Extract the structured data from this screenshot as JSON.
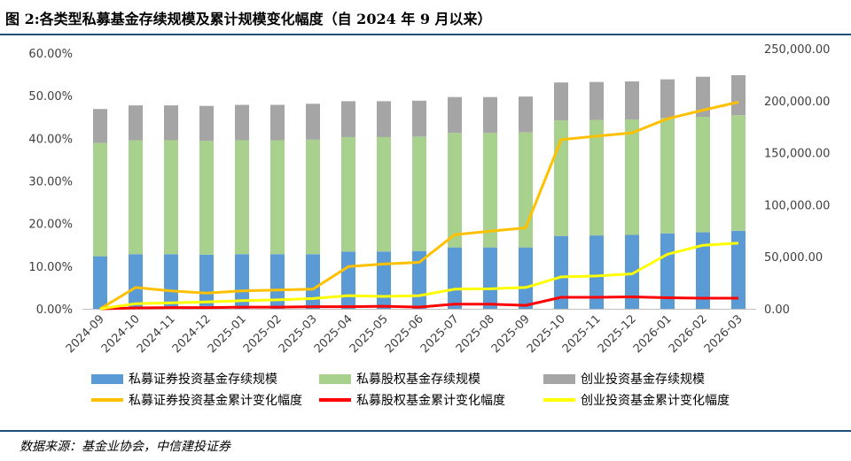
{
  "title": "图 2:各类型私募基金存续规模及累计规模变化幅度（自 2024 年 9 月以来）",
  "source": "数据来源：基金业协会，中信建投证券",
  "chart_data": {
    "type": "bar",
    "stacked": true,
    "categories": [
      "2024-09",
      "2024-10",
      "2024-11",
      "2024-12",
      "2025-01",
      "2025-02",
      "2025-03",
      "2025-04",
      "2025-05",
      "2025-06",
      "2025-07",
      "2025-08",
      "2025-09",
      "2025-10",
      "2025-11",
      "2025-12",
      "2026-01",
      "2026-02",
      "2026-03"
    ],
    "y_left": {
      "ticks": [
        "0.00%",
        "10.00%",
        "20.00%",
        "30.00%",
        "40.00%",
        "50.00%",
        "60.00%"
      ],
      "range": [
        0,
        0.6
      ]
    },
    "y_right": {
      "ticks": [
        "0.00",
        "50,000.00",
        "100,000.00",
        "150,000.00",
        "200,000.00",
        "250,000.00"
      ],
      "range": [
        0,
        250000
      ]
    },
    "bar_series": [
      {
        "name": "私募证券投资基金存续规模",
        "color": "#5b9bd5",
        "values": [
          50500,
          52500,
          52500,
          52000,
          52500,
          52500,
          52500,
          55000,
          55000,
          55500,
          59000,
          59000,
          59000,
          70000,
          70500,
          71000,
          72500,
          73500,
          75000
        ]
      },
      {
        "name": "私募股权基金存续规模",
        "color": "#a9d18e",
        "values": [
          109000,
          109500,
          109500,
          109500,
          109500,
          109500,
          110000,
          110000,
          110000,
          110000,
          110000,
          110000,
          110500,
          111000,
          111000,
          111000,
          111000,
          111000,
          111000
        ]
      },
      {
        "name": "创业投资基金存续规模",
        "color": "#a5a5a5",
        "values": [
          32500,
          33500,
          33500,
          33500,
          34000,
          34000,
          34500,
          34500,
          34500,
          34500,
          34500,
          34500,
          34500,
          36500,
          36500,
          36500,
          37000,
          38500,
          38500
        ]
      }
    ],
    "line_series": [
      {
        "name": "私募证券投资基金累计变化幅度",
        "color": "#ffc000",
        "values": [
          0,
          0.05,
          0.042,
          0.037,
          0.042,
          0.044,
          0.046,
          0.099,
          0.105,
          0.109,
          0.174,
          0.182,
          0.19,
          0.397,
          0.405,
          0.413,
          0.446,
          0.466,
          0.485
        ]
      },
      {
        "name": "私募股权基金累计变化幅度",
        "color": "#ff0000",
        "values": [
          0,
          0.002,
          0.003,
          0.003,
          0.004,
          0.004,
          0.005,
          0.005,
          0.006,
          0.004,
          0.011,
          0.011,
          0.008,
          0.027,
          0.027,
          0.028,
          0.026,
          0.025,
          0.025
        ]
      },
      {
        "name": "创业投资基金累计变化幅度",
        "color": "#ffff00",
        "values": [
          0,
          0.012,
          0.014,
          0.016,
          0.019,
          0.021,
          0.024,
          0.031,
          0.029,
          0.031,
          0.046,
          0.047,
          0.05,
          0.075,
          0.077,
          0.082,
          0.128,
          0.149,
          0.154
        ]
      }
    ],
    "legend": [
      {
        "label": "私募证券投资基金存续规模",
        "kind": "box",
        "color": "#5b9bd5"
      },
      {
        "label": "私募股权基金存续规模",
        "kind": "box",
        "color": "#a9d18e"
      },
      {
        "label": "创业投资基金存续规模",
        "kind": "box",
        "color": "#a5a5a5"
      },
      {
        "label": "私募证券投资基金累计变化幅度",
        "kind": "line",
        "color": "#ffc000"
      },
      {
        "label": "私募股权基金累计变化幅度",
        "kind": "line",
        "color": "#ff0000"
      },
      {
        "label": "创业投资基金累计变化幅度",
        "kind": "line",
        "color": "#ffff00"
      }
    ],
    "legend_position": "bottom",
    "grid": false
  }
}
